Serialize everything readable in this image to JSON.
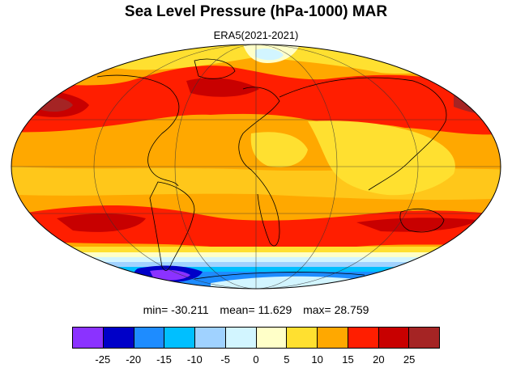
{
  "title": "Sea Level Pressure (hPa-1000) MAR",
  "subtitle": "ERA5(2021-2021)",
  "stats": {
    "min": "min= -30.211",
    "mean": "mean= 11.629",
    "max": "max= 28.759"
  },
  "colorbar": {
    "colors": [
      "#8b32ff",
      "#0000c8",
      "#1e8cff",
      "#00bfff",
      "#a0d2ff",
      "#d2f5ff",
      "#ffffc8",
      "#ffe030",
      "#ffa800",
      "#ff1e00",
      "#c80000",
      "#a52424"
    ],
    "labels": [
      "-25",
      "-20",
      "-15",
      "-10",
      "-5",
      "0",
      "5",
      "10",
      "15",
      "20",
      "25"
    ]
  },
  "map": {
    "projection": "Mollweide",
    "field": "sea level pressure anomaly (hPa-1000)"
  }
}
